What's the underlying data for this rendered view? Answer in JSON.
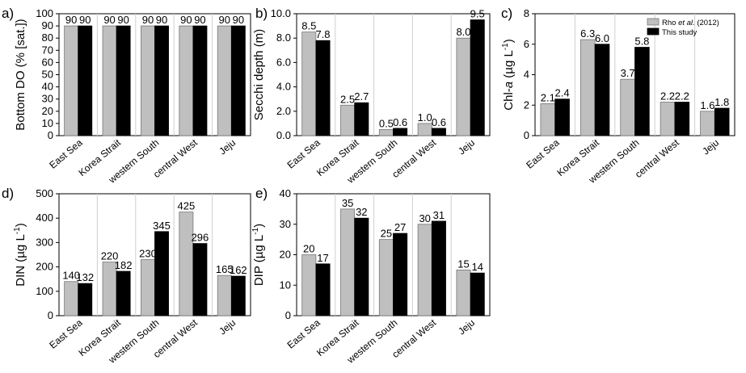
{
  "legend": {
    "series_a": "Rho et al. (2012)",
    "series_b": "This study",
    "colors": {
      "series_a": "#bfbfbf",
      "series_b": "#000000"
    }
  },
  "chart_data": [
    {
      "panel": "a)",
      "type": "bar",
      "ylabel": "Bottom DO (% [sat.])",
      "categories": [
        "East Sea",
        "Korea Strait",
        "western South",
        "central West",
        "Jeju"
      ],
      "series": [
        {
          "name": "Rho et al. (2012)",
          "values": [
            90,
            90,
            90,
            90,
            90
          ]
        },
        {
          "name": "This study",
          "values": [
            90,
            90,
            90,
            90,
            90
          ]
        }
      ],
      "value_labels": [
        [
          "90",
          "90",
          "90",
          "90",
          "90"
        ],
        [
          "90",
          "90",
          "90",
          "90",
          "90"
        ]
      ],
      "ylim": [
        0,
        100
      ],
      "yticks": [
        "0",
        "10",
        "20",
        "30",
        "40",
        "50",
        "60",
        "70",
        "80",
        "90",
        "100"
      ]
    },
    {
      "panel": "b)",
      "type": "bar",
      "ylabel": "Secchi depth (m)",
      "categories": [
        "East Sea",
        "Korea Strait",
        "western South",
        "central West",
        "Jeju"
      ],
      "series": [
        {
          "name": "Rho et al. (2012)",
          "values": [
            8.5,
            2.5,
            0.5,
            1.0,
            8.0
          ]
        },
        {
          "name": "This study",
          "values": [
            7.8,
            2.7,
            0.6,
            0.6,
            9.5
          ]
        }
      ],
      "value_labels": [
        [
          "8.5",
          "2.5",
          "0.5",
          "1.0",
          "8.0"
        ],
        [
          "7.8",
          "2.7",
          "0.6",
          "0.6",
          "9.5"
        ]
      ],
      "ylim": [
        0,
        10
      ],
      "yticks": [
        "0.0",
        "2.0",
        "4.0",
        "6.0",
        "8.0",
        "10.0"
      ]
    },
    {
      "panel": "c)",
      "type": "bar",
      "ylabel": "Chl-a (µg L-1)",
      "categories": [
        "East Sea",
        "Korea Strait",
        "western South",
        "central West",
        "Jeju"
      ],
      "series": [
        {
          "name": "Rho et al. (2012)",
          "values": [
            2.1,
            6.3,
            3.7,
            2.2,
            1.6
          ]
        },
        {
          "name": "This study",
          "values": [
            2.4,
            6.0,
            5.8,
            2.2,
            1.8
          ]
        }
      ],
      "value_labels": [
        [
          "2.1",
          "6.3",
          "3.7",
          "2.2",
          "1.6"
        ],
        [
          "2.4",
          "6.0",
          "5.8",
          "2.2",
          "1.8"
        ]
      ],
      "ylim": [
        0,
        8
      ],
      "yticks": [
        "0",
        "2",
        "4",
        "6",
        "8"
      ],
      "legend_position": "top-right"
    },
    {
      "panel": "d)",
      "type": "bar",
      "ylabel": "DIN (µg L-1)",
      "categories": [
        "East Sea",
        "Korea Strait",
        "western South",
        "central West",
        "Jeju"
      ],
      "series": [
        {
          "name": "Rho et al. (2012)",
          "values": [
            140,
            220,
            230,
            425,
            165
          ]
        },
        {
          "name": "This study",
          "values": [
            132,
            182,
            345,
            296,
            162
          ]
        }
      ],
      "value_labels": [
        [
          "140",
          "220",
          "230",
          "425",
          "165"
        ],
        [
          "132",
          "182",
          "345",
          "296",
          "162"
        ]
      ],
      "ylim": [
        0,
        500
      ],
      "yticks": [
        "0",
        "100",
        "200",
        "300",
        "400",
        "500"
      ]
    },
    {
      "panel": "e)",
      "type": "bar",
      "ylabel": "DIP (µg L-1)",
      "categories": [
        "East Sea",
        "Korea Strait",
        "western South",
        "central West",
        "Jeju"
      ],
      "series": [
        {
          "name": "Rho et al. (2012)",
          "values": [
            20,
            35,
            25,
            30,
            15
          ]
        },
        {
          "name": "This study",
          "values": [
            17,
            32,
            27,
            31,
            14
          ]
        }
      ],
      "value_labels": [
        [
          "20",
          "35",
          "25",
          "30",
          "15"
        ],
        [
          "17",
          "32",
          "27",
          "31",
          "14"
        ]
      ],
      "ylim": [
        0,
        40
      ],
      "yticks": [
        "0",
        "10",
        "20",
        "30",
        "40"
      ]
    }
  ]
}
